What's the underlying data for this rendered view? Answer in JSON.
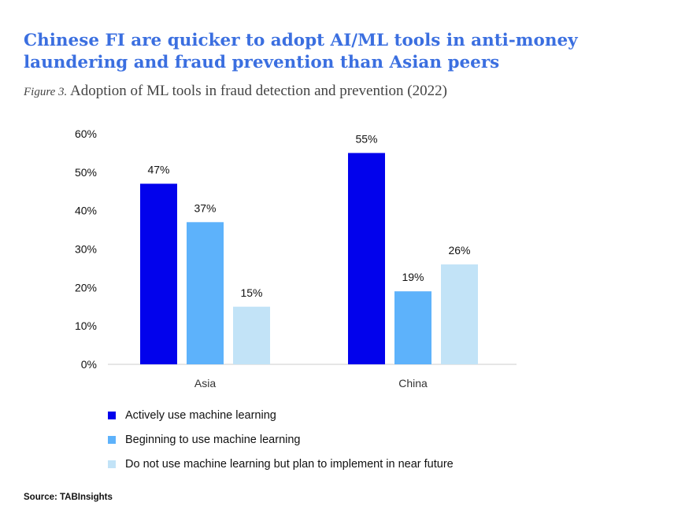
{
  "header": {
    "title": "Chinese FI are quicker to adopt AI/ML tools in anti-money laundering and fraud prevention than Asian peers",
    "figure_label": "Figure 3.",
    "subtitle": "Adoption of ML tools in fraud detection and prevention (2022)"
  },
  "footer": {
    "source": "Source: TABInsights"
  },
  "chart_data": {
    "type": "bar",
    "categories": [
      "Asia",
      "China"
    ],
    "series": [
      {
        "name": "Actively use machine learning",
        "values": [
          47,
          55
        ],
        "labels": [
          "47%",
          "55%"
        ],
        "color": "#0202ec"
      },
      {
        "name": "Beginning to use machine learning",
        "values": [
          37,
          19
        ],
        "labels": [
          "37%",
          "19%"
        ],
        "color": "#5db2fb"
      },
      {
        "name": "Do not use machine learning but plan to implement in near future",
        "values": [
          15,
          26
        ],
        "labels": [
          "15%",
          "26%"
        ],
        "color": "#c2e3f7"
      }
    ],
    "yticks": [
      "0%",
      "10%",
      "20%",
      "30%",
      "40%",
      "50%",
      "60%"
    ],
    "ylim": [
      0,
      60
    ],
    "grid": false,
    "legend_position": "bottom-left"
  }
}
